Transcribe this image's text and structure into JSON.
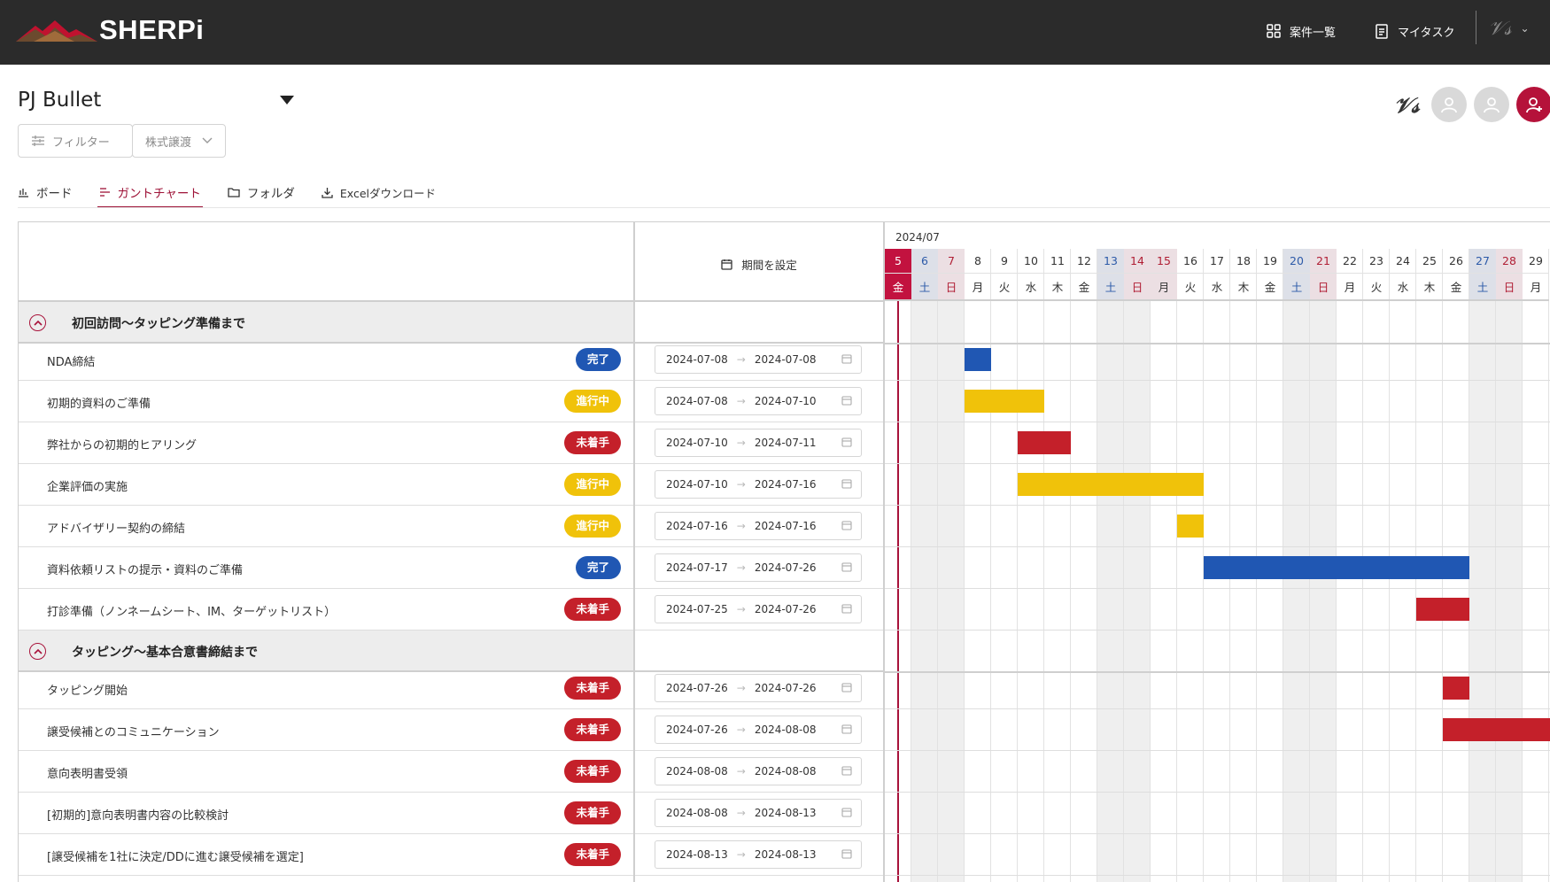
{
  "app": {
    "logo_text": "SHERPi"
  },
  "nav": {
    "projects_label": "案件一覧",
    "mytask_label": "マイタスク"
  },
  "project": {
    "title": "PJ Bullet"
  },
  "filters": {
    "filter_label": "フィルター",
    "category_label": "株式譲渡"
  },
  "tabs": [
    {
      "label": "ボード",
      "active": false
    },
    {
      "label": "ガントチャート",
      "active": true
    },
    {
      "label": "フォルダ",
      "active": false
    },
    {
      "label": "Excelダウンロード",
      "active": false
    }
  ],
  "table": {
    "period_label": "期間を設定",
    "date_arrow": "→"
  },
  "gantt": {
    "month": "2024/07",
    "days": [
      {
        "d": "5",
        "w": "金",
        "type": "today"
      },
      {
        "d": "6",
        "w": "土",
        "type": "sat"
      },
      {
        "d": "7",
        "w": "日",
        "type": "sun"
      },
      {
        "d": "8",
        "w": "月",
        "type": "wd"
      },
      {
        "d": "9",
        "w": "火",
        "type": "wd"
      },
      {
        "d": "10",
        "w": "水",
        "type": "wd"
      },
      {
        "d": "11",
        "w": "木",
        "type": "wd"
      },
      {
        "d": "12",
        "w": "金",
        "type": "wd"
      },
      {
        "d": "13",
        "w": "土",
        "type": "sat"
      },
      {
        "d": "14",
        "w": "日",
        "type": "sun"
      },
      {
        "d": "15",
        "w": "月",
        "type": "hol"
      },
      {
        "d": "16",
        "w": "火",
        "type": "wd"
      },
      {
        "d": "17",
        "w": "水",
        "type": "wd"
      },
      {
        "d": "18",
        "w": "木",
        "type": "wd"
      },
      {
        "d": "19",
        "w": "金",
        "type": "wd"
      },
      {
        "d": "20",
        "w": "土",
        "type": "sat"
      },
      {
        "d": "21",
        "w": "日",
        "type": "sun"
      },
      {
        "d": "22",
        "w": "月",
        "type": "wd"
      },
      {
        "d": "23",
        "w": "火",
        "type": "wd"
      },
      {
        "d": "24",
        "w": "水",
        "type": "wd"
      },
      {
        "d": "25",
        "w": "木",
        "type": "wd"
      },
      {
        "d": "26",
        "w": "金",
        "type": "wd"
      },
      {
        "d": "27",
        "w": "土",
        "type": "sat"
      },
      {
        "d": "28",
        "w": "日",
        "type": "sun"
      },
      {
        "d": "29",
        "w": "月",
        "type": "wd"
      }
    ]
  },
  "groups": [
    {
      "title": "初回訪問～タッピング準備まで",
      "tasks": [
        {
          "name": "NDA締結",
          "status": "完了",
          "state": "done",
          "start": "2024-07-08",
          "end": "2024-07-08"
        },
        {
          "name": "初期的資料のご準備",
          "status": "進行中",
          "state": "prog",
          "start": "2024-07-08",
          "end": "2024-07-10"
        },
        {
          "name": "弊社からの初期的ヒアリング",
          "status": "未着手",
          "state": "todo",
          "start": "2024-07-10",
          "end": "2024-07-11"
        },
        {
          "name": "企業評価の実施",
          "status": "進行中",
          "state": "prog",
          "start": "2024-07-10",
          "end": "2024-07-16"
        },
        {
          "name": "アドバイザリー契約の締結",
          "status": "進行中",
          "state": "prog",
          "start": "2024-07-16",
          "end": "2024-07-16"
        },
        {
          "name": "資料依頼リストの提示・資料のご準備",
          "status": "完了",
          "state": "done",
          "start": "2024-07-17",
          "end": "2024-07-26"
        },
        {
          "name": "打診準備（ノンネームシート、IM、ターゲットリスト）",
          "status": "未着手",
          "state": "todo",
          "start": "2024-07-25",
          "end": "2024-07-26"
        }
      ]
    },
    {
      "title": "タッピング～基本合意書締結まで",
      "tasks": [
        {
          "name": "タッピング開始",
          "status": "未着手",
          "state": "todo",
          "start": "2024-07-26",
          "end": "2024-07-26"
        },
        {
          "name": "譲受候補とのコミュニケーション",
          "status": "未着手",
          "state": "todo",
          "start": "2024-07-26",
          "end": "2024-08-08"
        },
        {
          "name": "意向表明書受領",
          "status": "未着手",
          "state": "todo",
          "start": "2024-08-08",
          "end": "2024-08-08"
        },
        {
          "name": "[初期的]意向表明書内容の比較検討",
          "status": "未着手",
          "state": "todo",
          "start": "2024-08-08",
          "end": "2024-08-13"
        },
        {
          "name": "[譲受候補を1社に決定/DDに進む譲受候補を選定]",
          "status": "未着手",
          "state": "todo",
          "start": "2024-08-13",
          "end": "2024-08-13"
        }
      ]
    }
  ]
}
